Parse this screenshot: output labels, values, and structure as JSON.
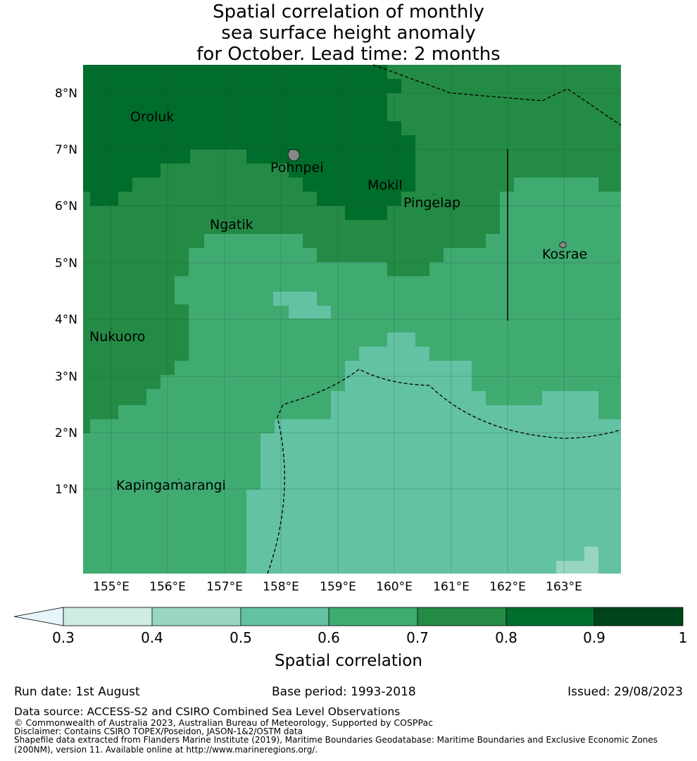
{
  "title": {
    "line1": "Spatial correlation of monthly",
    "line2": "sea surface height anomaly",
    "line3": "for October. Lead time: 2 months"
  },
  "map": {
    "lon_labels": [
      "155°E",
      "156°E",
      "157°E",
      "158°E",
      "159°E",
      "160°E",
      "161°E",
      "162°E",
      "163°E"
    ],
    "lat_labels": [
      "8°N",
      "7°N",
      "6°N",
      "5°N",
      "4°N",
      "3°N",
      "2°N",
      "1°N"
    ],
    "places": [
      "Oroluk",
      "Pohnpei",
      "Mokil",
      "Pingelap",
      "Ngatik",
      "Kosrae",
      "Nukuoro",
      "Kapingamarangi"
    ],
    "colors": {
      "c03": "#cdece3",
      "c04": "#98d6c3",
      "c05": "#62c2a3",
      "c06": "#3fab71",
      "c07": "#238b45",
      "c08": "#006d2c",
      "c09": "#00441b",
      "extend_low": "#e6f5f9"
    }
  },
  "colorbar": {
    "ticks": [
      "0.3",
      "0.4",
      "0.5",
      "0.6",
      "0.7",
      "0.8",
      "0.9",
      "1"
    ],
    "label": "Spatial correlation"
  },
  "footer": {
    "run_date": "Run date: 1st August",
    "base_period": "Base period: 1993-2018",
    "issued": "Issued: 29/08/2023",
    "data_source": "Data source: ACCESS-S2 and CSIRO Combined Sea Level Observations",
    "copyright": "© Commonwealth of Australia 2023, Australian Bureau of Meteorology, Supported by COSPPac",
    "disclaimer": "Disclaimer: Contains CSIRO TOPEX/Poseidon, JASON-1&2/OSTM data",
    "shapefile1": "Shapefile data extracted from Flanders Marine Institute (2019), Maritime Boundaries Geodatabase: Maritime Boundaries and Exclusive Economic Zones",
    "shapefile2": "(200NM), version 11. Available online at http://www.marineregions.org/."
  }
}
